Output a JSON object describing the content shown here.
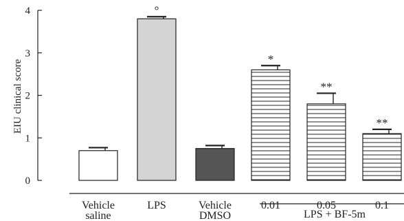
{
  "chart_data": {
    "type": "bar",
    "title": "",
    "xlabel": "",
    "ylabel": "EIU clinical score",
    "ylim": [
      0,
      4
    ],
    "yticks": [
      "0",
      "1",
      "2",
      "3",
      "4"
    ],
    "grid": false,
    "categories": [
      {
        "line1": "Vehicle",
        "line2": "saline"
      },
      {
        "line1": "LPS",
        "line2": ""
      },
      {
        "line1": "Vehicle",
        "line2": "DMSO"
      },
      {
        "line1": "0.01",
        "line2": ""
      },
      {
        "line1": "0.05",
        "line2": ""
      },
      {
        "line1": "0.1",
        "line2": ""
      }
    ],
    "values": [
      0.7,
      3.8,
      0.75,
      2.6,
      1.8,
      1.1
    ],
    "errors": [
      0.07,
      0.05,
      0.07,
      0.1,
      0.25,
      0.1
    ],
    "annotations": [
      "",
      "°",
      "",
      "*",
      "**",
      "**"
    ],
    "fills": [
      "white",
      "light-gray",
      "dark-gray",
      "striped",
      "striped",
      "striped"
    ],
    "colors": {
      "light_gray": "#d4d4d4",
      "dark_gray": "#555555",
      "stroke": "#222222"
    },
    "group_label": "LPS + BF-5m"
  }
}
